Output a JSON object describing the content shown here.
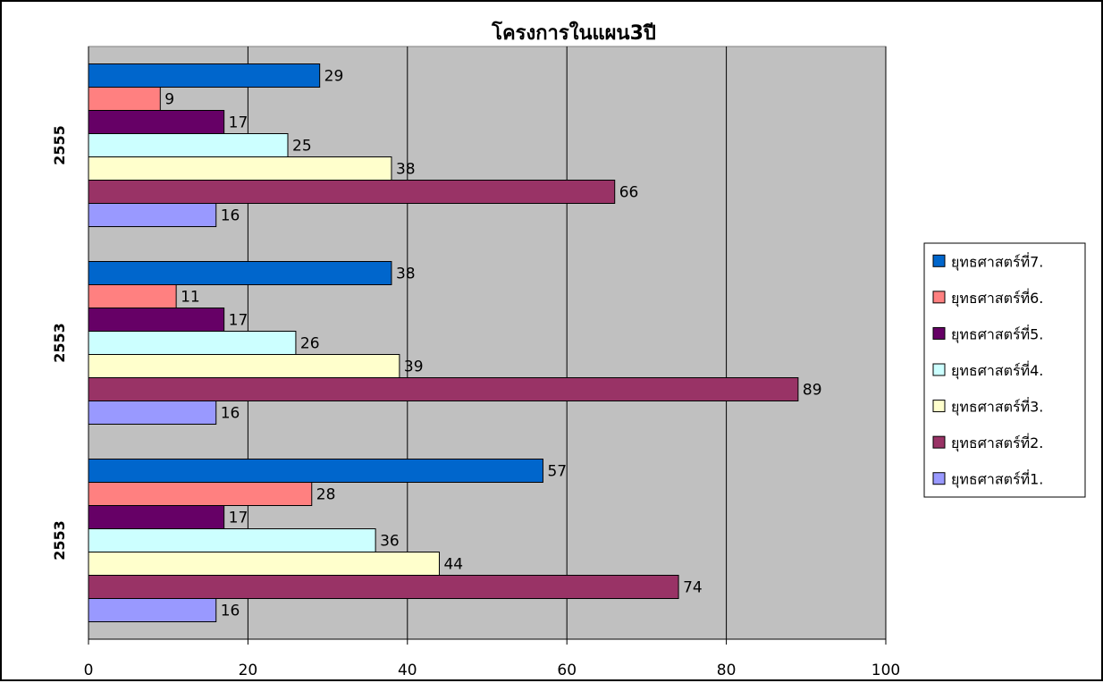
{
  "chart_data": {
    "type": "bar",
    "orientation": "horizontal",
    "title": "โครงการในแผน3ปี",
    "categories": [
      "2553",
      "2553",
      "2555"
    ],
    "series": [
      {
        "name": "ยุทธศาสตร์ที่1.",
        "color": "#9999FF",
        "values": [
          16,
          16,
          16
        ]
      },
      {
        "name": "ยุทธศาสตร์ที่2.",
        "color": "#993366",
        "values": [
          74,
          89,
          66
        ]
      },
      {
        "name": "ยุทธศาสตร์ที่3.",
        "color": "#FFFFCC",
        "values": [
          44,
          39,
          38
        ]
      },
      {
        "name": "ยุทธศาสตร์ที่4.",
        "color": "#CCFFFF",
        "values": [
          36,
          26,
          25
        ]
      },
      {
        "name": "ยุทธศาสตร์ที่5.",
        "color": "#660066",
        "values": [
          17,
          17,
          17
        ]
      },
      {
        "name": "ยุทธศาสตร์ที่6.",
        "color": "#FF8080",
        "values": [
          28,
          11,
          9
        ]
      },
      {
        "name": "ยุทธศาสตร์ที่7.",
        "color": "#0066CC",
        "values": [
          57,
          38,
          29
        ]
      }
    ],
    "xlim": [
      0,
      100
    ],
    "xticks": [
      0,
      20,
      40,
      60,
      80,
      100
    ],
    "grid": true,
    "legend": "right",
    "legend_order": "reversed",
    "plot_background": "#C0C0C0"
  }
}
